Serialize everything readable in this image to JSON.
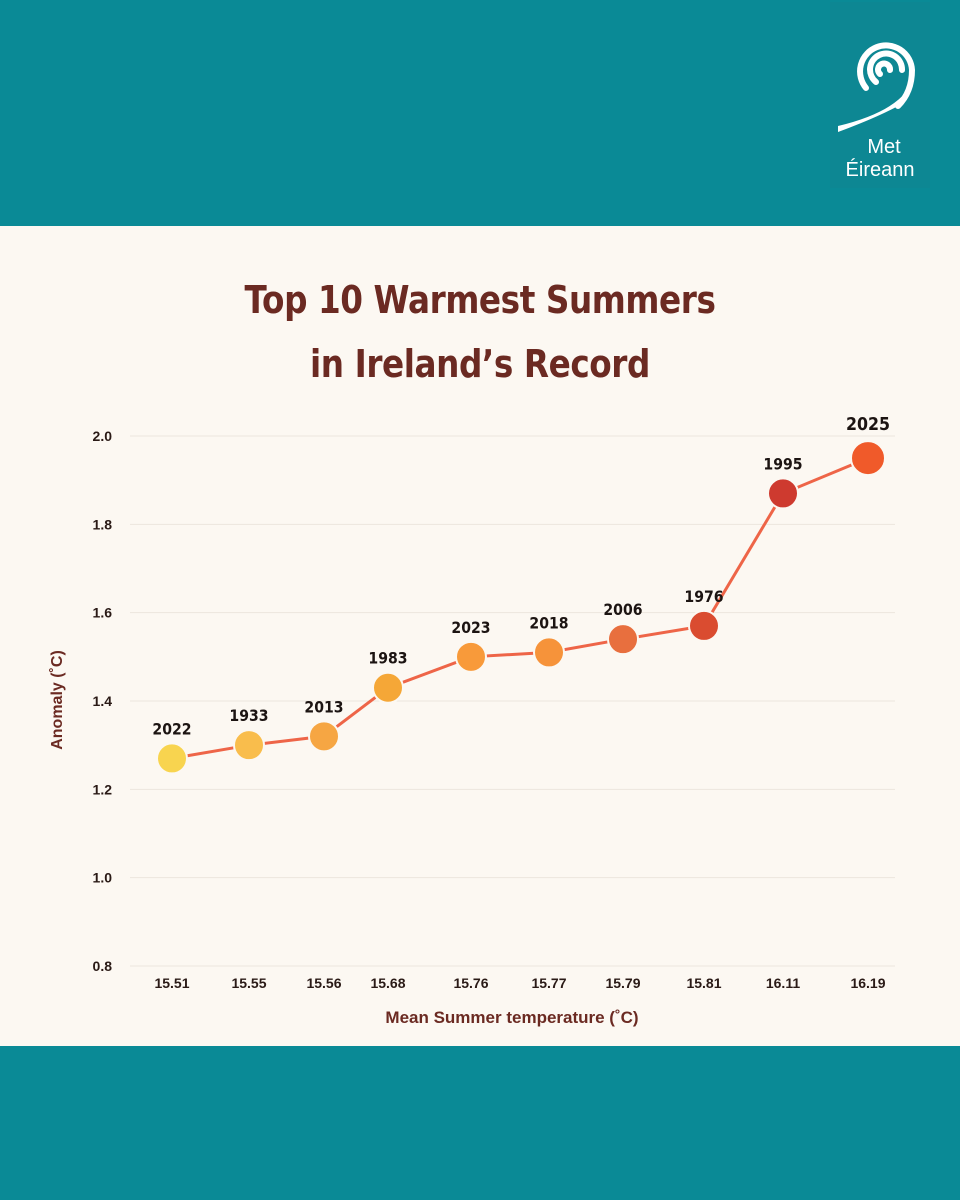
{
  "header": {
    "logo": {
      "icon": "met-eireann-swirl-icon",
      "line1": "Met",
      "line2": "Éireann"
    }
  },
  "title_lines": [
    "Top 10 Warmest Summers",
    "in Ireland’s Record"
  ],
  "colors": {
    "band": "#0a8a96",
    "panel": "#fcf8f2",
    "title": "#6b2a22",
    "line": "#ee6548",
    "grid": "#ece6dd"
  },
  "chart_data": {
    "type": "line",
    "title": "Top 10 Warmest Summers in Ireland’s Record",
    "xlabel": "Mean Summer temperature (˚C)",
    "ylabel": "Anomaly (˚C)",
    "ylim": [
      0.8,
      2.0
    ],
    "yticks": [
      "0.8",
      "1.0",
      "1.2",
      "1.4",
      "1.6",
      "1.8",
      "2.0"
    ],
    "grid": true,
    "x": [
      "15.51",
      "15.55",
      "15.56",
      "15.68",
      "15.76",
      "15.77",
      "15.79",
      "15.81",
      "16.11",
      "16.19"
    ],
    "series": [
      {
        "values": [
          1.27,
          1.3,
          1.32,
          1.43,
          1.5,
          1.51,
          1.54,
          1.57,
          1.87,
          1.95
        ],
        "labels": [
          "2022",
          "1933",
          "2013",
          "1983",
          "2023",
          "2018",
          "2006",
          "1976",
          "1995",
          "2025"
        ],
        "point_colors": [
          "#f8d44f",
          "#f9bd4c",
          "#f6a643",
          "#f5a737",
          "#f89a3a",
          "#f6933a",
          "#e86f3e",
          "#da4c30",
          "#ce3a2f",
          "#f05a2a"
        ]
      }
    ]
  }
}
